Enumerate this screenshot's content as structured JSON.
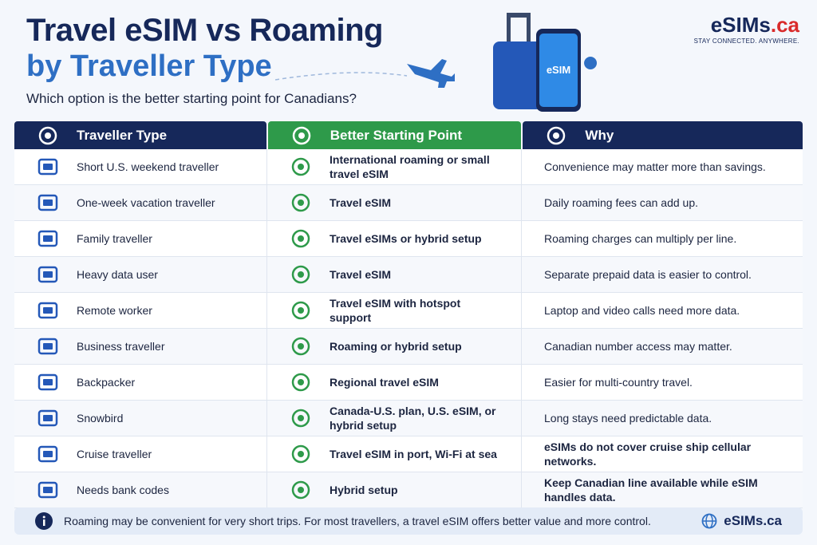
{
  "header": {
    "title_line1": "Travel eSIM vs Roaming",
    "title_line2": "by Traveller Type",
    "subtitle": "Which option is the better starting point for Canadians?"
  },
  "brand": {
    "name": "eSIMs",
    "suffix": ".ca",
    "tagline": "STAY CONNECTED. ANYWHERE."
  },
  "illustration": {
    "phone_label": "eSIM"
  },
  "table": {
    "columns": [
      "Traveller Type",
      "Better Starting Point",
      "Why"
    ],
    "rows": [
      [
        "Short U.S. weekend traveller",
        "International roaming or small travel eSIM",
        "Convenience may matter more than savings."
      ],
      [
        "One-week vacation traveller",
        "Travel eSIM",
        "Daily roaming fees can add up."
      ],
      [
        "Family traveller",
        "Travel eSIMs or hybrid setup",
        "Roaming charges can multiply per line."
      ],
      [
        "Heavy data user",
        "Travel eSIM",
        "Separate prepaid data is easier to control."
      ],
      [
        "Remote worker",
        "Travel eSIM with hotspot support",
        "Laptop and video calls need more data."
      ],
      [
        "Business traveller",
        "Roaming or hybrid setup",
        "Canadian number access may matter."
      ],
      [
        "Backpacker",
        "Regional travel eSIM",
        "Easier for multi-country travel."
      ],
      [
        "Snowbird",
        "Canada-U.S. plan, U.S. eSIM, or hybrid setup",
        "Long stays need predictable data."
      ],
      [
        "Cruise traveller",
        "Travel eSIM in port, Wi-Fi at sea",
        "eSIMs do not cover cruise ship cellular networks."
      ],
      [
        "Needs bank codes",
        "Hybrid setup",
        "Keep Canadian line available while eSIM handles data."
      ]
    ]
  },
  "footer": {
    "note": "Roaming may be convenient for very short trips. For most travellers, a travel eSIM offers better value and more control.",
    "brand": "eSIMs.ca"
  }
}
